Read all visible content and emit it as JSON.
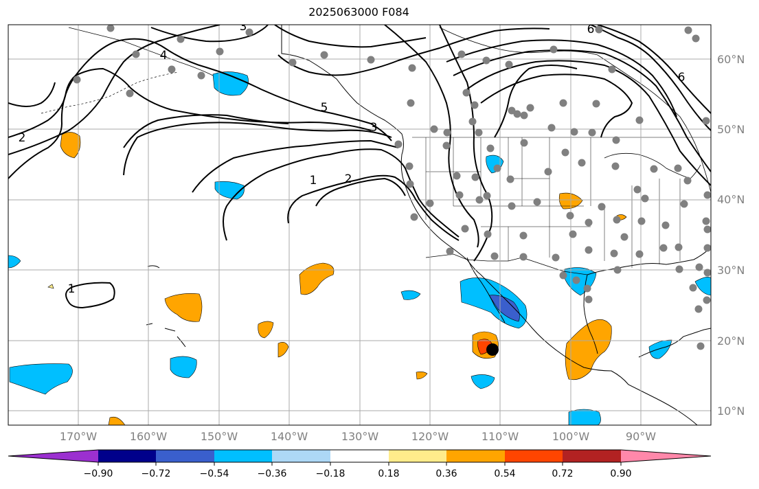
{
  "title": "2025063000 F084",
  "lat_labels": [
    "60°N",
    "50°N",
    "40°N",
    "30°N",
    "20°N",
    "10°N"
  ],
  "lon_labels": [
    "170°W",
    "160°W",
    "150°W",
    "140°W",
    "130°W",
    "120°W",
    "110°W",
    "100°W",
    "90°W"
  ],
  "contour_labels": [
    "1",
    "2",
    "3",
    "4",
    "5",
    "6"
  ],
  "colorbar": {
    "ticks": [
      "−0.90",
      "−0.72",
      "−0.54",
      "−0.36",
      "−0.18",
      "0.18",
      "0.36",
      "0.54",
      "0.72",
      "0.90"
    ],
    "colors": [
      "#9b30d0",
      "#00008b",
      "#3a5fcd",
      "#00bfff",
      "#add8f6",
      "#ffffff",
      "#ffec8b",
      "#ffa500",
      "#ff4500",
      "#b22222",
      "#ff88aa"
    ]
  },
  "colors": {
    "orange": "#ffa500",
    "red_orange": "#ff4500",
    "cyan": "#00bfff",
    "blue": "#3a5fcd",
    "grid": "#aaaaaa",
    "station": "#808080"
  }
}
